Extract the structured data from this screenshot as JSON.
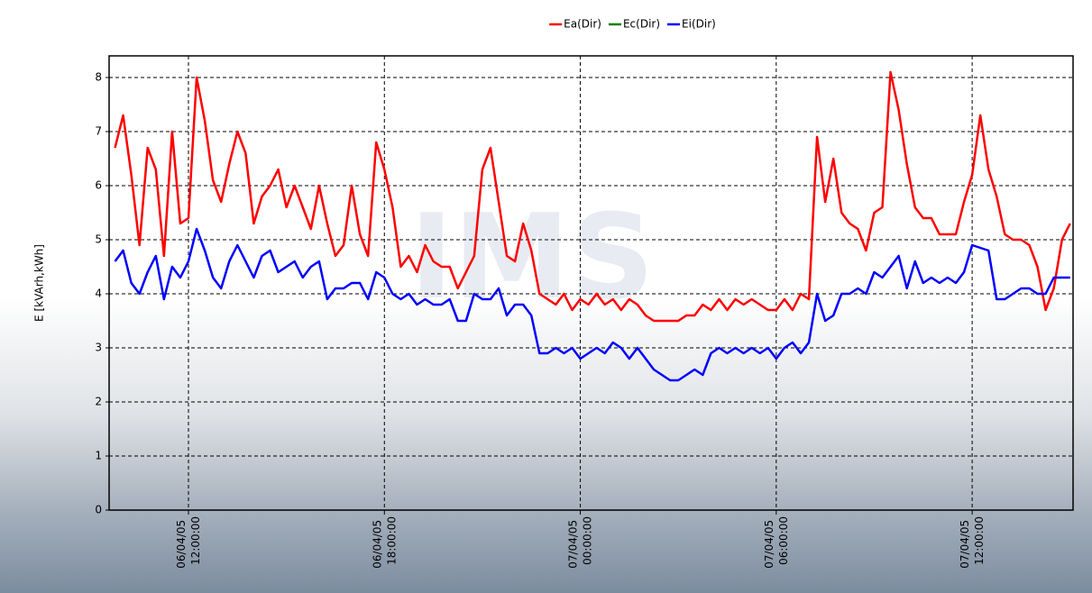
{
  "chart_data": {
    "type": "line",
    "ylabel": "E [kVArh,kWh]",
    "watermark": "IMS",
    "xlim": [
      9.57,
      39.09
    ],
    "xticks": [
      {
        "value": 12,
        "label": "06/04/05 12:00:00"
      },
      {
        "value": 18,
        "label": "06/04/05 18:00:00"
      },
      {
        "value": 24,
        "label": "07/04/05 00:00:00"
      },
      {
        "value": 30,
        "label": "07/04/05 06:00:00"
      },
      {
        "value": 36,
        "label": "07/04/05 12:00:00"
      }
    ],
    "ylim": [
      0,
      8.4
    ],
    "yticks": [
      0,
      1,
      2,
      3,
      4,
      5,
      6,
      7,
      8
    ],
    "grid": true,
    "legend": "top",
    "x": [
      9.75,
      10,
      10.25,
      10.5,
      10.75,
      11,
      11.25,
      11.5,
      11.75,
      12,
      12.25,
      12.5,
      12.75,
      13,
      13.25,
      13.5,
      13.75,
      14,
      14.25,
      14.5,
      14.75,
      15,
      15.25,
      15.5,
      15.75,
      16,
      16.25,
      16.5,
      16.75,
      17,
      17.25,
      17.5,
      17.75,
      18,
      18.25,
      18.5,
      18.75,
      19,
      19.25,
      19.5,
      19.75,
      20,
      20.25,
      20.5,
      20.75,
      21,
      21.25,
      21.5,
      21.75,
      22,
      22.25,
      22.5,
      22.75,
      23,
      23.25,
      23.5,
      23.75,
      24,
      24.25,
      24.5,
      24.75,
      25,
      25.25,
      25.5,
      25.75,
      26,
      26.25,
      26.5,
      26.75,
      27,
      27.25,
      27.5,
      27.75,
      28,
      28.25,
      28.5,
      28.75,
      29,
      29.25,
      29.5,
      29.75,
      30,
      30.25,
      30.5,
      30.75,
      31,
      31.25,
      31.5,
      31.75,
      32,
      32.25,
      32.5,
      32.75,
      33,
      33.25,
      33.5,
      33.75,
      34,
      34.25,
      34.5,
      34.75,
      35,
      35.25,
      35.5,
      35.75,
      36,
      36.25,
      36.5,
      36.75,
      37,
      37.25,
      37.5,
      37.75,
      38,
      38.25,
      38.5,
      38.75,
      39
    ],
    "series": [
      {
        "name": "Ea(Dir)",
        "color": "#ff0000",
        "values": [
          6.7,
          7.3,
          6.2,
          4.9,
          6.7,
          6.3,
          4.7,
          7.0,
          5.3,
          5.4,
          8.0,
          7.2,
          6.1,
          5.7,
          6.4,
          7.0,
          6.6,
          5.3,
          5.8,
          6.0,
          6.3,
          5.6,
          6.0,
          5.6,
          5.2,
          6.0,
          5.3,
          4.7,
          4.9,
          6.0,
          5.1,
          4.7,
          6.8,
          6.3,
          5.6,
          4.5,
          4.7,
          4.4,
          4.9,
          4.6,
          4.5,
          4.5,
          4.1,
          4.4,
          4.7,
          6.3,
          6.7,
          5.7,
          4.7,
          4.6,
          5.3,
          4.8,
          4.0,
          3.9,
          3.8,
          4.0,
          3.7,
          3.9,
          3.8,
          4.0,
          3.8,
          3.9,
          3.7,
          3.9,
          3.8,
          3.6,
          3.5,
          3.5,
          3.5,
          3.5,
          3.6,
          3.6,
          3.8,
          3.7,
          3.9,
          3.7,
          3.9,
          3.8,
          3.9,
          3.8,
          3.7,
          3.7,
          3.9,
          3.7,
          4.0,
          3.9,
          6.9,
          5.7,
          6.5,
          5.5,
          5.3,
          5.2,
          4.8,
          5.5,
          5.6,
          8.1,
          7.4,
          6.4,
          5.6,
          5.4,
          5.4,
          5.1,
          5.1,
          5.1,
          5.7,
          6.2,
          7.3,
          6.3,
          5.8,
          5.1,
          5.0,
          5.0,
          4.9,
          4.5,
          3.7,
          4.1,
          5.0,
          5.3
        ]
      },
      {
        "name": "Ec(Dir)",
        "color": "#008000",
        "values": [
          null,
          null,
          null,
          null,
          null,
          null,
          null,
          null,
          null,
          null,
          null,
          null,
          null,
          null,
          null,
          null,
          null,
          null,
          null,
          null,
          null,
          null,
          null,
          null,
          null,
          null,
          null,
          null,
          null,
          null,
          null,
          null,
          null,
          null,
          null,
          null,
          null,
          null,
          null,
          null,
          null,
          null,
          null,
          null,
          null,
          null,
          null,
          null,
          null,
          null,
          null,
          null,
          null,
          null,
          null,
          null,
          null,
          null,
          null,
          null,
          null,
          null,
          null,
          null,
          null,
          null,
          null,
          null,
          null,
          null,
          null,
          null,
          null,
          null,
          null,
          null,
          null,
          null,
          null,
          null,
          null,
          null,
          null,
          null,
          null,
          null,
          null,
          null,
          null,
          null,
          null,
          null,
          null,
          null,
          null,
          null,
          null,
          null,
          null,
          null,
          null,
          null,
          null,
          null,
          null,
          null,
          null,
          null,
          null,
          null,
          null,
          null,
          null,
          null,
          null,
          null,
          null,
          null
        ]
      },
      {
        "name": "Ei(Dir)",
        "color": "#0000ff",
        "values": [
          4.6,
          4.8,
          4.2,
          4.0,
          4.4,
          4.7,
          3.9,
          4.5,
          4.3,
          4.6,
          5.2,
          4.8,
          4.3,
          4.1,
          4.6,
          4.9,
          4.6,
          4.3,
          4.7,
          4.8,
          4.4,
          4.5,
          4.6,
          4.3,
          4.5,
          4.6,
          3.9,
          4.1,
          4.1,
          4.2,
          4.2,
          3.9,
          4.4,
          4.3,
          4.0,
          3.9,
          4.0,
          3.8,
          3.9,
          3.8,
          3.8,
          3.9,
          3.5,
          3.5,
          4.0,
          3.9,
          3.9,
          4.1,
          3.6,
          3.8,
          3.8,
          3.6,
          2.9,
          2.9,
          3.0,
          2.9,
          3.0,
          2.8,
          2.9,
          3.0,
          2.9,
          3.1,
          3.0,
          2.8,
          3.0,
          2.8,
          2.6,
          2.5,
          2.4,
          2.4,
          2.5,
          2.6,
          2.5,
          2.9,
          3.0,
          2.9,
          3.0,
          2.9,
          3.0,
          2.9,
          3.0,
          2.8,
          3.0,
          3.1,
          2.9,
          3.1,
          4.0,
          3.5,
          3.6,
          4.0,
          4.0,
          4.1,
          4.0,
          4.4,
          4.3,
          4.5,
          4.7,
          4.1,
          4.6,
          4.2,
          4.3,
          4.2,
          4.3,
          4.2,
          4.4,
          4.9,
          4.85,
          4.8,
          3.9,
          3.9,
          4.0,
          4.1,
          4.1,
          4.0,
          4.0,
          4.3,
          4.3,
          4.3
        ]
      }
    ]
  }
}
